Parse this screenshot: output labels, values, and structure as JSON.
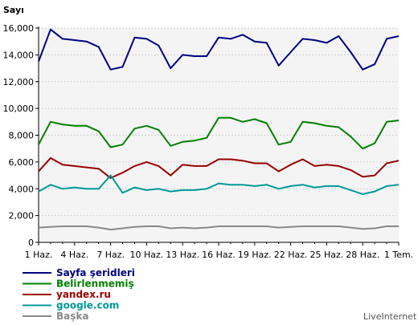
{
  "chart_data": {
    "type": "line",
    "ylabel": "Sayı",
    "xlabel": "",
    "ylim": [
      0,
      16000
    ],
    "y_ticks": [
      0,
      2000,
      4000,
      6000,
      8000,
      10000,
      12000,
      14000,
      16000
    ],
    "y_tick_labels": [
      "0",
      "2,000",
      "4,000",
      "6,000",
      "8,000",
      "10,000",
      "12,000",
      "14,000",
      "16,000"
    ],
    "x_tick_labels": [
      "1 Haz.",
      "4 Haz.",
      "7 Haz.",
      "10 Haz.",
      "13 Haz.",
      "16 Haz.",
      "19 Haz.",
      "22 Haz.",
      "25 Haz.",
      "28 Haz.",
      "1 Tem."
    ],
    "x_count": 31,
    "plot_background": "#f4f4f4",
    "grid": true,
    "legend_position": "bottom-left",
    "series": [
      {
        "name": "Sayfa şeridleri",
        "color": "#000080",
        "values": [
          13500,
          15900,
          15200,
          15100,
          15000,
          14600,
          12900,
          13100,
          15300,
          15200,
          14700,
          13000,
          14000,
          13900,
          13900,
          15300,
          15200,
          15500,
          15000,
          14900,
          13200,
          14200,
          15200,
          15100,
          14900,
          15400,
          14200,
          12900,
          13300,
          15200,
          15400
        ]
      },
      {
        "name": "Belirlenmemiş",
        "color": "#008000",
        "values": [
          7300,
          9000,
          8800,
          8700,
          8700,
          8300,
          7100,
          7300,
          8500,
          8700,
          8400,
          7200,
          7500,
          7600,
          7800,
          9300,
          9300,
          9000,
          9200,
          8900,
          7300,
          7500,
          9000,
          8900,
          8700,
          8600,
          7900,
          7000,
          7400,
          9000,
          9100
        ]
      },
      {
        "name": "yandex.ru",
        "color": "#990000",
        "values": [
          5300,
          6300,
          5800,
          5700,
          5600,
          5500,
          4800,
          5200,
          5700,
          6000,
          5700,
          5000,
          5800,
          5700,
          5700,
          6200,
          6200,
          6100,
          5900,
          5900,
          5300,
          5800,
          6200,
          5700,
          5800,
          5700,
          5400,
          4900,
          5000,
          5900,
          6100
        ]
      },
      {
        "name": "google.com",
        "color": "#009999",
        "values": [
          3800,
          4300,
          4000,
          4100,
          4000,
          4000,
          5000,
          3700,
          4100,
          3900,
          4000,
          3800,
          3900,
          3900,
          4000,
          4400,
          4300,
          4300,
          4200,
          4300,
          4000,
          4200,
          4300,
          4100,
          4200,
          4200,
          3900,
          3600,
          3800,
          4200,
          4300
        ]
      },
      {
        "name": "Başka",
        "color": "#888888",
        "values": [
          1100,
          1150,
          1200,
          1200,
          1200,
          1100,
          950,
          1050,
          1150,
          1200,
          1200,
          1050,
          1100,
          1050,
          1100,
          1200,
          1200,
          1200,
          1200,
          1200,
          1100,
          1150,
          1200,
          1200,
          1200,
          1200,
          1100,
          1000,
          1050,
          1200,
          1200
        ]
      }
    ]
  },
  "credit": "LiveInternet"
}
